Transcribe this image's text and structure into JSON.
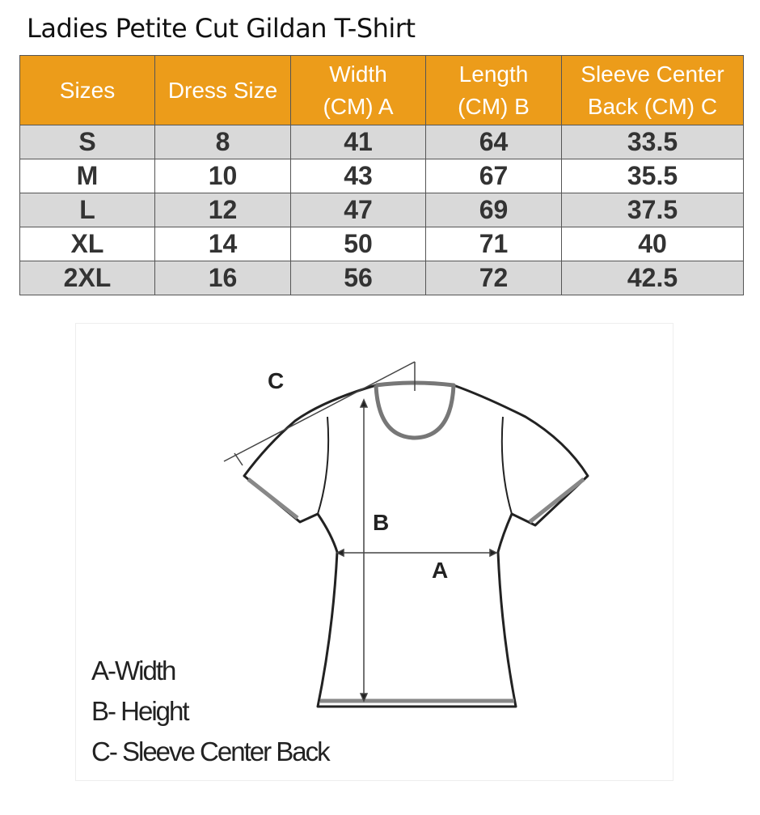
{
  "title": "Ladies Petite Cut Gildan T-Shirt",
  "colors": {
    "header": "#ec9c1a",
    "row_alt": "#d9d9d9"
  },
  "table": {
    "headers": [
      "Sizes",
      "Dress Size",
      "Width (CM) A",
      "Length (CM) B",
      "Sleeve Center Back (CM) C"
    ],
    "header_lines": [
      [
        "Sizes"
      ],
      [
        "Dress Size"
      ],
      [
        "Width",
        "(CM) A"
      ],
      [
        "Length",
        "(CM) B"
      ],
      [
        "Sleeve Center",
        "Back (CM) C"
      ]
    ],
    "rows": [
      [
        "S",
        "8",
        "41",
        "64",
        "33.5"
      ],
      [
        "M",
        "10",
        "43",
        "67",
        "35.5"
      ],
      [
        "L",
        "12",
        "47",
        "69",
        "37.5"
      ],
      [
        "XL",
        "14",
        "50",
        "71",
        "40"
      ],
      [
        "2XL",
        "16",
        "56",
        "72",
        "42.5"
      ]
    ]
  },
  "diagram": {
    "labels": {
      "a": "A",
      "b": "B",
      "c": "C"
    },
    "legend": [
      "A-Width",
      "B- Height",
      "C- Sleeve Center Back"
    ]
  }
}
